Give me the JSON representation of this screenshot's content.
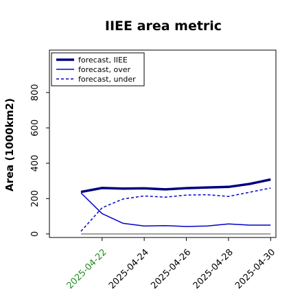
{
  "chart_data": {
    "type": "line",
    "title": "IIEE area metric",
    "xlabel": "",
    "ylabel": "Area (1000km2)",
    "x": [
      "2025-04-21",
      "2025-04-22",
      "2025-04-23",
      "2025-04-24",
      "2025-04-25",
      "2025-04-26",
      "2025-04-27",
      "2025-04-28",
      "2025-04-29",
      "2025-04-30"
    ],
    "x_ticks": [
      "2025-04-22",
      "2025-04-24",
      "2025-04-26",
      "2025-04-28",
      "2025-04-30"
    ],
    "highlight_tick": "2025-04-22",
    "xlim": [
      "2025-04-19T12:00",
      "2025-04-30T06:00"
    ],
    "ylim": [
      -20,
      1040
    ],
    "y_ticks": [
      0,
      200,
      400,
      600,
      800
    ],
    "grid": false,
    "legend_position": "top-left",
    "baseline": 0,
    "series": [
      {
        "name": "forecast, IIEE",
        "style": "solid-thick",
        "color": "#00007f",
        "values": [
          238,
          260,
          257,
          258,
          252,
          259,
          263,
          266,
          283,
          308
        ]
      },
      {
        "name": "forecast, over",
        "style": "solid",
        "color": "#0000cc",
        "values": [
          232,
          115,
          60,
          45,
          47,
          42,
          45,
          57,
          50,
          50
        ]
      },
      {
        "name": "forecast, under",
        "style": "dashed",
        "color": "#0000cc",
        "values": [
          15,
          148,
          198,
          215,
          208,
          220,
          222,
          212,
          236,
          260
        ]
      }
    ],
    "colors": {
      "axis": "#000000",
      "baseline": "#808080",
      "highlight_tick": "#228b22"
    }
  }
}
